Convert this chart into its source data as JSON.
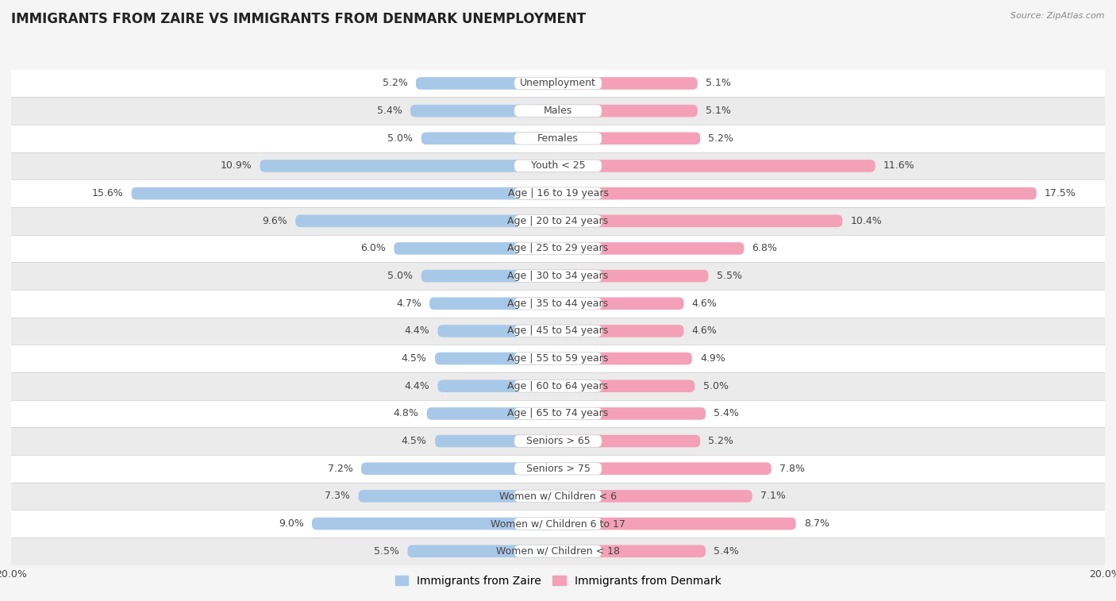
{
  "title": "IMMIGRANTS FROM ZAIRE VS IMMIGRANTS FROM DENMARK UNEMPLOYMENT",
  "source": "Source: ZipAtlas.com",
  "categories": [
    "Unemployment",
    "Males",
    "Females",
    "Youth < 25",
    "Age | 16 to 19 years",
    "Age | 20 to 24 years",
    "Age | 25 to 29 years",
    "Age | 30 to 34 years",
    "Age | 35 to 44 years",
    "Age | 45 to 54 years",
    "Age | 55 to 59 years",
    "Age | 60 to 64 years",
    "Age | 65 to 74 years",
    "Seniors > 65",
    "Seniors > 75",
    "Women w/ Children < 6",
    "Women w/ Children 6 to 17",
    "Women w/ Children < 18"
  ],
  "zaire_values": [
    5.2,
    5.4,
    5.0,
    10.9,
    15.6,
    9.6,
    6.0,
    5.0,
    4.7,
    4.4,
    4.5,
    4.4,
    4.8,
    4.5,
    7.2,
    7.3,
    9.0,
    5.5
  ],
  "denmark_values": [
    5.1,
    5.1,
    5.2,
    11.6,
    17.5,
    10.4,
    6.8,
    5.5,
    4.6,
    4.6,
    4.9,
    5.0,
    5.4,
    5.2,
    7.8,
    7.1,
    8.7,
    5.4
  ],
  "zaire_color": "#a8c8e8",
  "denmark_color": "#f4a0b8",
  "row_colors": [
    "#ffffff",
    "#ebebeb"
  ],
  "separator_color": "#cccccc",
  "label_bg": "#ffffff",
  "text_color": "#444444",
  "background_color": "#f5f5f5",
  "max_val": 20.0,
  "title_fontsize": 12,
  "label_fontsize": 9,
  "value_fontsize": 9
}
